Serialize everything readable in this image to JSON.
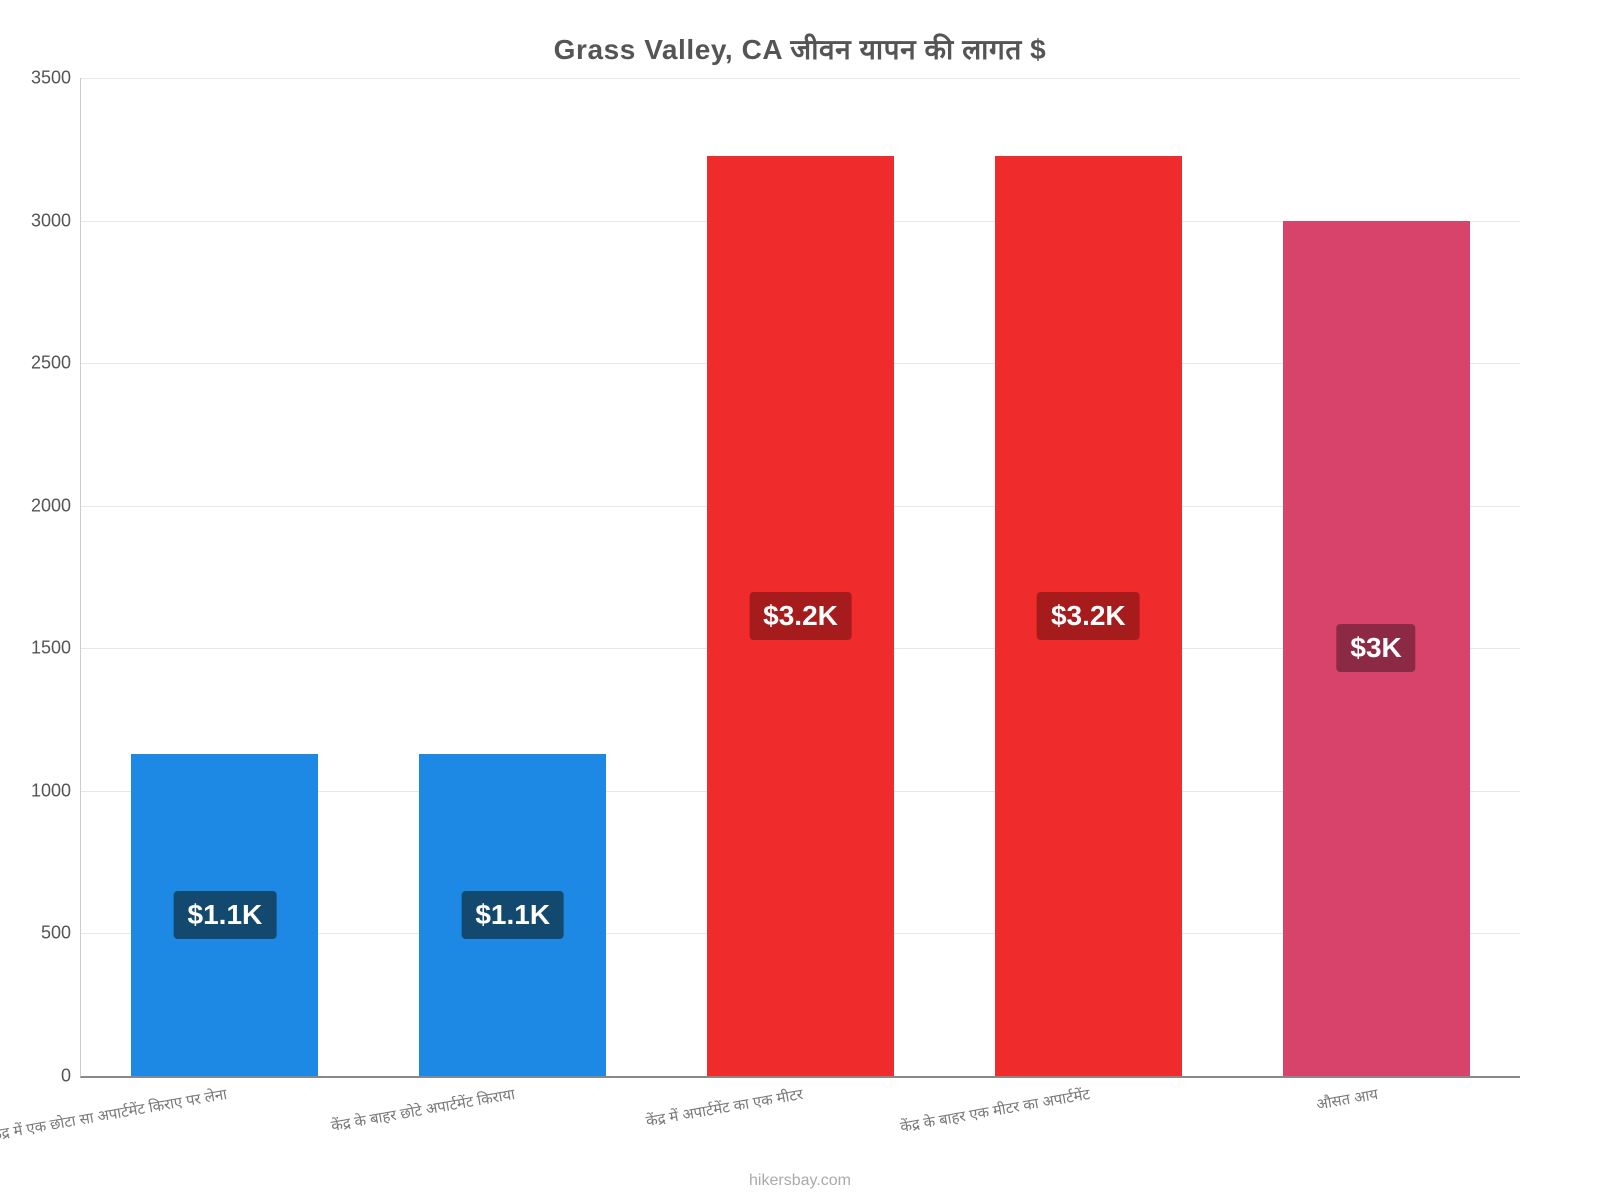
{
  "chart": {
    "type": "bar",
    "title": "Grass Valley, CA जीवन यापन की लागत $",
    "title_fontsize": 28,
    "title_color": "#555555",
    "background_color": "#ffffff",
    "ylim": [
      0,
      3500
    ],
    "ytick_step": 500,
    "yticks": [
      0,
      500,
      1000,
      1500,
      2000,
      2500,
      3000,
      3500
    ],
    "ytick_fontsize": 18,
    "ytick_color": "#555555",
    "grid_color": "#e8e8e8",
    "axis_color": "#888888",
    "bar_width_ratio": 0.65,
    "xlabel_fontsize": 15,
    "xlabel_color": "#777777",
    "xlabel_rotation_deg": -10,
    "value_label_fontsize": 28,
    "attribution": "hikersbay.com",
    "attribution_fontsize": 16,
    "attribution_color": "#aaaaaa",
    "categories": [
      "केंद्र में एक छोटा सा अपार्टमेंट किराए पर लेना",
      "केंद्र के बाहर छोटे अपार्टमेंट किराया",
      "केंद्र में अपार्टमेंट का एक मीटर",
      "केंद्र के बाहर एक मीटर का अपार्टमेंट",
      "औसत आय"
    ],
    "values": [
      1130,
      1130,
      3225,
      3225,
      3000
    ],
    "value_labels": [
      "$1.1K",
      "$1.1K",
      "$3.2K",
      "$3.2K",
      "$3K"
    ],
    "bar_colors": [
      "#1e88e5",
      "#1e88e5",
      "#ef2b2b",
      "#ef2b2b",
      "#d7436b"
    ],
    "label_bg_colors": [
      "#14496f",
      "#14496f",
      "#a61c1c",
      "#a61c1c",
      "#8c2a46"
    ]
  }
}
